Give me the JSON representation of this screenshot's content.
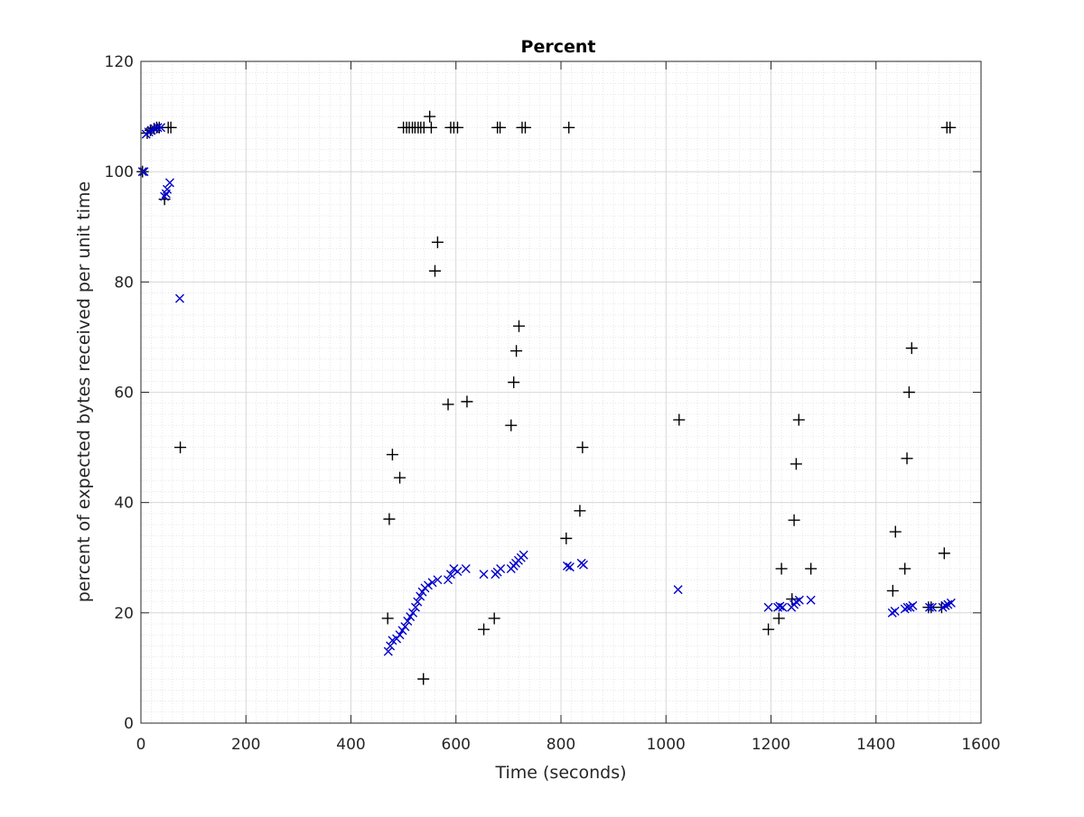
{
  "chart_data": {
    "type": "scatter",
    "title": "Percent",
    "xlabel": "Time (seconds)",
    "ylabel": "percent of expected bytes received per unit time",
    "xlim": [
      0,
      1600
    ],
    "ylim": [
      0,
      120
    ],
    "x_ticks": [
      0,
      200,
      400,
      600,
      800,
      1000,
      1200,
      1400,
      1600
    ],
    "y_ticks": [
      0,
      20,
      40,
      60,
      80,
      100,
      120
    ],
    "grid": true,
    "minor_grid": true,
    "legend": "none",
    "series": [
      {
        "marker": "plus",
        "color": "#000000",
        "points": [
          [
            3,
            100
          ],
          [
            12,
            107
          ],
          [
            18,
            107.5
          ],
          [
            25,
            107.8
          ],
          [
            30,
            108
          ],
          [
            35,
            108
          ],
          [
            52,
            108
          ],
          [
            57,
            108
          ],
          [
            45,
            95
          ],
          [
            75,
            50
          ],
          [
            500,
            108
          ],
          [
            506,
            108
          ],
          [
            511,
            108
          ],
          [
            517,
            108
          ],
          [
            522,
            108
          ],
          [
            528,
            108
          ],
          [
            533,
            108
          ],
          [
            539,
            108
          ],
          [
            550,
            110
          ],
          [
            553,
            108
          ],
          [
            590,
            108
          ],
          [
            596,
            108
          ],
          [
            603,
            108
          ],
          [
            679,
            108
          ],
          [
            684,
            108
          ],
          [
            726,
            108
          ],
          [
            732,
            108
          ],
          [
            815,
            108
          ],
          [
            1535,
            108
          ],
          [
            1541,
            108
          ],
          [
            470,
            19
          ],
          [
            473,
            37
          ],
          [
            479,
            48.7
          ],
          [
            493,
            44.5
          ],
          [
            538,
            8
          ],
          [
            560,
            82
          ],
          [
            565,
            87.2
          ],
          [
            585,
            57.8
          ],
          [
            621,
            58.3
          ],
          [
            653,
            17
          ],
          [
            673,
            19
          ],
          [
            705,
            54
          ],
          [
            710,
            61.8
          ],
          [
            715,
            67.5
          ],
          [
            720,
            72
          ],
          [
            810,
            33.5
          ],
          [
            836,
            38.5
          ],
          [
            841,
            50
          ],
          [
            1025,
            55
          ],
          [
            1195,
            17
          ],
          [
            1215,
            19
          ],
          [
            1220,
            28
          ],
          [
            1240,
            22.5
          ],
          [
            1244,
            36.8
          ],
          [
            1248,
            47
          ],
          [
            1253,
            55
          ],
          [
            1276,
            28
          ],
          [
            1432,
            24
          ],
          [
            1437,
            34.7
          ],
          [
            1455,
            28
          ],
          [
            1459,
            48
          ],
          [
            1463,
            60
          ],
          [
            1468,
            68
          ],
          [
            1500,
            21
          ],
          [
            1505,
            21
          ],
          [
            1525,
            21
          ],
          [
            1530,
            30.8
          ]
        ]
      },
      {
        "marker": "x",
        "color": "#0000cc",
        "points": [
          [
            3,
            100
          ],
          [
            6,
            100
          ],
          [
            10,
            106.8
          ],
          [
            15,
            107.2
          ],
          [
            20,
            107.5
          ],
          [
            26,
            107.8
          ],
          [
            32,
            108
          ],
          [
            38,
            108
          ],
          [
            45,
            95.5
          ],
          [
            48,
            96
          ],
          [
            50,
            96.8
          ],
          [
            55,
            98
          ],
          [
            74,
            77
          ],
          [
            471,
            13
          ],
          [
            475,
            14
          ],
          [
            479,
            15
          ],
          [
            487,
            15.3
          ],
          [
            493,
            16
          ],
          [
            498,
            16.8
          ],
          [
            503,
            17.5
          ],
          [
            508,
            18.5
          ],
          [
            513,
            19.3
          ],
          [
            518,
            20
          ],
          [
            523,
            21
          ],
          [
            527,
            22
          ],
          [
            532,
            23
          ],
          [
            536,
            23.8
          ],
          [
            541,
            24.5
          ],
          [
            547,
            25
          ],
          [
            555,
            25.5
          ],
          [
            565,
            26
          ],
          [
            585,
            26
          ],
          [
            590,
            27
          ],
          [
            596,
            28
          ],
          [
            603,
            27.5
          ],
          [
            619,
            28
          ],
          [
            653,
            27
          ],
          [
            675,
            27
          ],
          [
            679,
            27.4
          ],
          [
            685,
            28
          ],
          [
            705,
            28
          ],
          [
            710,
            28.5
          ],
          [
            714,
            29
          ],
          [
            719,
            29.5
          ],
          [
            724,
            30
          ],
          [
            729,
            30.5
          ],
          [
            812,
            28.5
          ],
          [
            817,
            28.3
          ],
          [
            839,
            29
          ],
          [
            843,
            28.7
          ],
          [
            1023,
            24.2
          ],
          [
            1195,
            21
          ],
          [
            1213,
            21
          ],
          [
            1217,
            21.2
          ],
          [
            1222,
            21
          ],
          [
            1239,
            21
          ],
          [
            1244,
            21.5
          ],
          [
            1248,
            22
          ],
          [
            1254,
            22.3
          ],
          [
            1276,
            22.3
          ],
          [
            1431,
            20
          ],
          [
            1436,
            20.3
          ],
          [
            1455,
            20.7
          ],
          [
            1460,
            21
          ],
          [
            1465,
            21
          ],
          [
            1470,
            21.3
          ],
          [
            1502,
            21
          ],
          [
            1507,
            21
          ],
          [
            1527,
            21
          ],
          [
            1532,
            21.3
          ],
          [
            1537,
            21.5
          ],
          [
            1543,
            21.8
          ]
        ]
      }
    ]
  }
}
